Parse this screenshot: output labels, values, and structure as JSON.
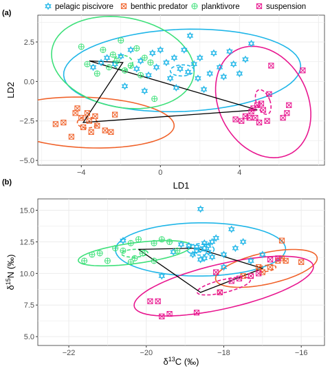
{
  "legend": [
    {
      "name": "pelagic piscivore",
      "color": "#1fb6e8",
      "marker": "star-of-david"
    },
    {
      "name": "benthic predator",
      "color": "#f0622a",
      "marker": "boxed-x"
    },
    {
      "name": "planktivore",
      "color": "#3ee07a",
      "marker": "circled-plus"
    },
    {
      "name": "suspension",
      "color": "#e8168f",
      "marker": "boxed-x-inner"
    }
  ],
  "chart_data": [
    {
      "type": "scatter",
      "panel_label": "(a)",
      "xlabel": "LD1",
      "ylabel": "LD2",
      "xlim": [
        -6.2,
        8.3
      ],
      "ylim": [
        -5.3,
        4.2
      ],
      "xticks": [
        -4,
        0,
        4
      ],
      "yticks": [
        -5.0,
        -2.5,
        0.0,
        2.5
      ],
      "tick_labels_x": [
        "−4",
        "0",
        "4"
      ],
      "tick_labels_y": [
        "−5.0",
        "−2.5",
        "0.0",
        "2.5"
      ],
      "grid": true,
      "series": [
        {
          "name": "pelagic piscivore",
          "points": [
            [
              -3.4,
              0.9
            ],
            [
              -3.0,
              1.2
            ],
            [
              -2.7,
              1.5
            ],
            [
              -2.3,
              1.1
            ],
            [
              -2.0,
              1.6
            ],
            [
              -1.8,
              -0.3
            ],
            [
              -1.5,
              2.0
            ],
            [
              -1.2,
              0.8
            ],
            [
              -1.0,
              1.3
            ],
            [
              -0.8,
              -0.6
            ],
            [
              -0.6,
              0.4
            ],
            [
              -0.4,
              1.8
            ],
            [
              -0.2,
              0.9
            ],
            [
              0.0,
              2.0
            ],
            [
              0.3,
              1.2
            ],
            [
              0.5,
              0.2
            ],
            [
              0.7,
              1.5
            ],
            [
              0.8,
              -0.4
            ],
            [
              1.0,
              0.8
            ],
            [
              1.2,
              2.0
            ],
            [
              1.4,
              0.6
            ],
            [
              1.5,
              2.9
            ],
            [
              1.7,
              1.1
            ],
            [
              1.9,
              0.2
            ],
            [
              2.0,
              1.5
            ],
            [
              2.2,
              -0.5
            ],
            [
              2.5,
              0.5
            ],
            [
              2.7,
              1.8
            ],
            [
              3.0,
              0.9
            ],
            [
              3.2,
              0.3
            ],
            [
              3.5,
              1.9
            ],
            [
              3.7,
              1.1
            ],
            [
              4.0,
              0.5
            ],
            [
              4.3,
              1.4
            ],
            [
              4.6,
              2.4
            ]
          ]
        },
        {
          "name": "benthic predator",
          "points": [
            [
              -5.3,
              -2.7
            ],
            [
              -4.9,
              -2.6
            ],
            [
              -4.5,
              -3.5
            ],
            [
              -4.3,
              -2.0
            ],
            [
              -4.2,
              -1.7
            ],
            [
              -4.0,
              -2.3
            ],
            [
              -3.9,
              -2.9
            ],
            [
              -3.7,
              -2.0
            ],
            [
              -3.6,
              -2.5
            ],
            [
              -3.5,
              -3.2
            ],
            [
              -3.3,
              -2.2
            ],
            [
              -3.2,
              -2.8
            ],
            [
              -2.8,
              -3.1
            ],
            [
              -2.5,
              -3.2
            ],
            [
              -2.3,
              -2.1
            ]
          ]
        },
        {
          "name": "planktivore",
          "points": [
            [
              -4.0,
              2.2
            ],
            [
              -3.7,
              1.1
            ],
            [
              -3.2,
              0.5
            ],
            [
              -2.9,
              2.0
            ],
            [
              -2.6,
              0.9
            ],
            [
              -2.4,
              1.7
            ],
            [
              -2.2,
              1.3
            ],
            [
              -2.0,
              2.6
            ],
            [
              -1.8,
              0.7
            ],
            [
              -1.5,
              1.0
            ],
            [
              -1.2,
              2.1
            ],
            [
              -1.0,
              0.4
            ],
            [
              -0.8,
              1.5
            ],
            [
              -0.5,
              1.2
            ],
            [
              -0.3,
              -1.1
            ]
          ]
        },
        {
          "name": "suspension",
          "points": [
            [
              3.8,
              -2.4
            ],
            [
              4.1,
              -2.5
            ],
            [
              4.3,
              -2.2
            ],
            [
              4.5,
              -2.3
            ],
            [
              4.6,
              -1.9
            ],
            [
              4.7,
              -1.7
            ],
            [
              4.8,
              -2.3
            ],
            [
              4.9,
              -1.5
            ],
            [
              5.0,
              -2.6
            ],
            [
              5.1,
              -1.4
            ],
            [
              5.2,
              -1.8
            ],
            [
              5.4,
              -2.5
            ],
            [
              5.5,
              -0.8
            ],
            [
              5.6,
              1.0
            ],
            [
              6.2,
              -2.3
            ],
            [
              6.4,
              -2.0
            ],
            [
              6.5,
              -1.5
            ],
            [
              7.2,
              0.7
            ]
          ]
        }
      ],
      "ellipses": [
        {
          "name": "pelagic piscivore",
          "cx": 1.1,
          "cy": 0.7,
          "rx": 6.0,
          "ry": 2.6,
          "angle_deg": 3
        },
        {
          "name": "benthic predator",
          "cx": -3.7,
          "cy": -2.6,
          "rx": 4.4,
          "ry": 1.6,
          "angle_deg": -3
        },
        {
          "name": "planktivore",
          "cx": -1.9,
          "cy": 1.2,
          "rx": 3.7,
          "ry": 2.8,
          "angle_deg": -20
        },
        {
          "name": "suspension",
          "cx": 5.2,
          "cy": -1.3,
          "rx": 2.3,
          "ry": 3.6,
          "angle_deg": 15
        }
      ],
      "mean_ellipses": [
        {
          "name": "pelagic piscivore",
          "cx": 1.1,
          "cy": 0.7,
          "rx": 0.6,
          "ry": 0.35,
          "angle_deg": 3
        },
        {
          "name": "benthic predator",
          "cx": -3.7,
          "cy": -2.6,
          "rx": 0.5,
          "ry": 0.35,
          "angle_deg": 0
        },
        {
          "name": "planktivore",
          "cx": -1.9,
          "cy": 1.2,
          "rx": 0.5,
          "ry": 0.45,
          "angle_deg": -20
        },
        {
          "name": "suspension",
          "cx": 5.2,
          "cy": -1.3,
          "rx": 0.35,
          "ry": 0.8,
          "angle_deg": 15
        }
      ],
      "hull": [
        [
          -3.6,
          1.3
        ],
        [
          4.9,
          -1.8
        ],
        [
          -3.9,
          -2.6
        ],
        [
          -1.9,
          1.2
        ],
        [
          -3.6,
          1.3
        ]
      ]
    },
    {
      "type": "scatter",
      "panel_label": "(b)",
      "xlabel": "δ13C (‰)",
      "ylabel": "δ15N (‰)",
      "xlim": [
        -22.8,
        -15.4
      ],
      "ylim": [
        4.3,
        15.9
      ],
      "xticks": [
        -22,
        -20,
        -18,
        -16
      ],
      "yticks": [
        5.0,
        7.5,
        10.0,
        12.5,
        15.0
      ],
      "tick_labels_x": [
        "−22",
        "−20",
        "−18",
        "−16"
      ],
      "tick_labels_y": [
        "5.0",
        "7.5",
        "10.0",
        "12.5",
        "15.0"
      ],
      "grid": true,
      "series": [
        {
          "name": "pelagic piscivore",
          "points": [
            [
              -20.6,
              12.6
            ],
            [
              -19.6,
              9.8
            ],
            [
              -19.3,
              11.7
            ],
            [
              -19.1,
              12.3
            ],
            [
              -18.9,
              12.2
            ],
            [
              -18.8,
              11.5
            ],
            [
              -18.7,
              11.8
            ],
            [
              -18.7,
              12.1
            ],
            [
              -18.6,
              11.9
            ],
            [
              -18.5,
              12.4
            ],
            [
              -18.5,
              11.2
            ],
            [
              -18.4,
              12.2
            ],
            [
              -18.5,
              12.0
            ],
            [
              -18.2,
              12.8
            ],
            [
              -18.0,
              11.5
            ],
            [
              -18.0,
              10.5
            ],
            [
              -17.8,
              13.5
            ],
            [
              -17.5,
              12.5
            ],
            [
              -17.3,
              11.0
            ],
            [
              -17.0,
              11.5
            ],
            [
              -18.6,
              15.1
            ],
            [
              -18.6,
              11.1
            ],
            [
              -18.3,
              11.3
            ],
            [
              -18.4,
              11.7
            ],
            [
              -18.3,
              12.5
            ],
            [
              -17.7,
              12.0
            ]
          ]
        },
        {
          "name": "benthic predator",
          "points": [
            [
              -18.1,
              8.5
            ],
            [
              -17.5,
              9.8
            ],
            [
              -17.3,
              9.8
            ],
            [
              -17.1,
              10.5
            ],
            [
              -17.0,
              10.1
            ],
            [
              -16.8,
              10.5
            ],
            [
              -16.6,
              11.0
            ],
            [
              -16.5,
              11.2
            ],
            [
              -16.5,
              12.6
            ],
            [
              -16.4,
              11.0
            ],
            [
              -16.0,
              10.9
            ]
          ]
        },
        {
          "name": "planktivore",
          "points": [
            [
              -21.6,
              11.0
            ],
            [
              -21.4,
              11.5
            ],
            [
              -21.2,
              11.6
            ],
            [
              -21.0,
              11.0
            ],
            [
              -20.8,
              12.0
            ],
            [
              -20.6,
              11.8
            ],
            [
              -20.4,
              12.4
            ],
            [
              -20.3,
              11.2
            ],
            [
              -20.2,
              12.7
            ],
            [
              -20.1,
              11.6
            ],
            [
              -19.8,
              12.4
            ],
            [
              -19.6,
              12.7
            ],
            [
              -19.4,
              12.5
            ],
            [
              -19.8,
              11.0
            ],
            [
              -20.4,
              10.9
            ],
            [
              -19.2,
              11.8
            ]
          ]
        },
        {
          "name": "suspension",
          "points": [
            [
              -19.9,
              7.8
            ],
            [
              -19.7,
              7.8
            ],
            [
              -19.6,
              6.6
            ],
            [
              -19.4,
              6.8
            ],
            [
              -18.7,
              6.9
            ],
            [
              -18.2,
              10.1
            ],
            [
              -18.1,
              8.5
            ],
            [
              -17.8,
              9.4
            ],
            [
              -17.6,
              9.6
            ],
            [
              -17.3,
              9.8
            ],
            [
              -17.1,
              10.0
            ],
            [
              -16.8,
              11.1
            ],
            [
              -16.6,
              11.2
            ]
          ]
        }
      ],
      "ellipses": [
        {
          "name": "pelagic piscivore",
          "cx": -18.6,
          "cy": 11.9,
          "rx": 2.2,
          "ry": 2.1,
          "angle_deg": 12
        },
        {
          "name": "benthic predator",
          "cx": -16.9,
          "cy": 10.4,
          "rx": 1.75,
          "ry": 0.95,
          "angle_deg": 52
        },
        {
          "name": "planktivore",
          "cx": -20.3,
          "cy": 11.6,
          "rx": 1.6,
          "ry": 0.75,
          "angle_deg": 28
        },
        {
          "name": "suspension",
          "cx": -18.0,
          "cy": 9.0,
          "rx": 3.0,
          "ry": 1.4,
          "angle_deg": 46
        }
      ],
      "mean_ellipses": [
        {
          "name": "pelagic piscivore",
          "cx": -18.6,
          "cy": 11.9,
          "rx": 0.35,
          "ry": 0.45,
          "angle_deg": 0
        },
        {
          "name": "benthic predator",
          "cx": -16.9,
          "cy": 10.4,
          "rx": 0.3,
          "ry": 0.2,
          "angle_deg": 50
        },
        {
          "name": "planktivore",
          "cx": -20.3,
          "cy": 11.6,
          "rx": 0.35,
          "ry": 0.3,
          "angle_deg": 28
        },
        {
          "name": "suspension",
          "cx": -18.0,
          "cy": 9.0,
          "rx": 0.9,
          "ry": 0.4,
          "angle_deg": 46
        }
      ],
      "hull": [
        [
          -20.2,
          11.9
        ],
        [
          -18.7,
          12.0
        ],
        [
          -17.0,
          10.4
        ],
        [
          -18.6,
          8.5
        ],
        [
          -20.2,
          11.9
        ]
      ]
    }
  ]
}
